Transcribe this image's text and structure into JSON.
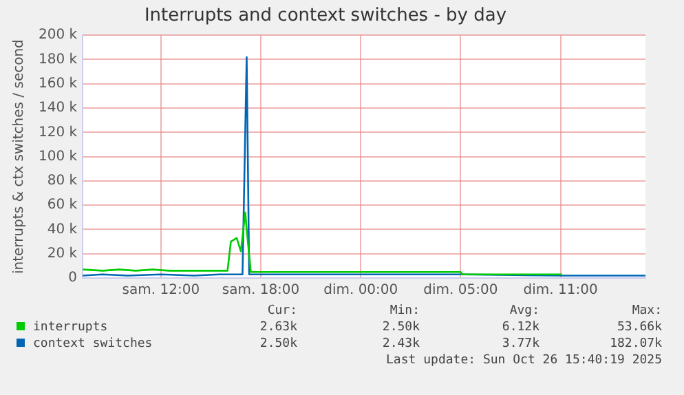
{
  "chart_data": {
    "type": "line",
    "title": "Interrupts and context switches - by day",
    "ylabel": "interrupts & ctx switches / second",
    "xlim": [
      "2025-10-25T05:18",
      "2025-10-26T15:06"
    ],
    "xticks": [
      {
        "value": "2025-10-25T10:00",
        "label": "sam. 12:00"
      },
      {
        "value": "2025-10-25T16:00",
        "label": "sam. 18:00"
      },
      {
        "value": "2025-10-25T22:00",
        "label": "dim. 00:00"
      },
      {
        "value": "2025-10-26T04:00",
        "label": "dim. 05:00"
      },
      {
        "value": "2025-10-26T10:00",
        "label": "dim. 11:00"
      }
    ],
    "ylim": [
      0,
      200000
    ],
    "yticks": [
      {
        "value": 0,
        "label": "0"
      },
      {
        "value": 20000,
        "label": "20 k"
      },
      {
        "value": 40000,
        "label": "40 k"
      },
      {
        "value": 60000,
        "label": "60 k"
      },
      {
        "value": 80000,
        "label": "80 k"
      },
      {
        "value": 100000,
        "label": "100 k"
      },
      {
        "value": 120000,
        "label": "120 k"
      },
      {
        "value": 140000,
        "label": "140 k"
      },
      {
        "value": 160000,
        "label": "160 k"
      },
      {
        "value": 180000,
        "label": "180 k"
      },
      {
        "value": 200000,
        "label": "200 k"
      }
    ],
    "grid": true,
    "legend": "bottom",
    "marker": "none",
    "line_style": "solid",
    "series": [
      {
        "name": "interrupts",
        "color": "#00cc00",
        "x": [
          "2025-10-25T05:18",
          "2025-10-25T06:30",
          "2025-10-25T07:30",
          "2025-10-25T08:30",
          "2025-10-25T09:30",
          "2025-10-25T10:30",
          "2025-10-25T11:30",
          "2025-10-25T12:30",
          "2025-10-25T13:30",
          "2025-10-25T14:00",
          "2025-10-25T14:12",
          "2025-10-25T14:33",
          "2025-10-25T14:48",
          "2025-10-25T15:04",
          "2025-10-25T15:09",
          "2025-10-25T15:24",
          "2025-10-25T18:00",
          "2025-10-25T22:00",
          "2025-10-26T01:00",
          "2025-10-26T04:00",
          "2025-10-26T04:06",
          "2025-10-26T07:00",
          "2025-10-26T10:06"
        ],
        "values": [
          7000,
          6000,
          7000,
          6000,
          7000,
          6000,
          6000,
          6000,
          6000,
          6000,
          30000,
          33000,
          22000,
          54000,
          40000,
          5000,
          5000,
          5000,
          5000,
          5000,
          3000,
          3000,
          3000
        ]
      },
      {
        "name": "context switches",
        "color": "#0066b3",
        "x": [
          "2025-10-25T05:18",
          "2025-10-25T06:30",
          "2025-10-25T08:00",
          "2025-10-25T10:00",
          "2025-10-25T12:00",
          "2025-10-25T13:30",
          "2025-10-25T14:00",
          "2025-10-25T14:54",
          "2025-10-25T15:09",
          "2025-10-25T15:18",
          "2025-10-25T18:00",
          "2025-10-25T22:00",
          "2025-10-26T04:00",
          "2025-10-26T10:00",
          "2025-10-26T15:06"
        ],
        "values": [
          2000,
          3000,
          2000,
          3000,
          2000,
          3000,
          3000,
          3000,
          182000,
          3000,
          3000,
          3000,
          3000,
          2000,
          2000
        ]
      }
    ],
    "annotations": [
      "Cur:",
      "Min:",
      "Avg:",
      "Max:",
      "2.63k",
      "2.50k",
      "6.12k",
      "53.66k",
      "2.50k",
      "2.43k",
      "3.77k",
      "182.07k",
      "Last update: Sun Oct 26 15:40:19 2025"
    ]
  }
}
